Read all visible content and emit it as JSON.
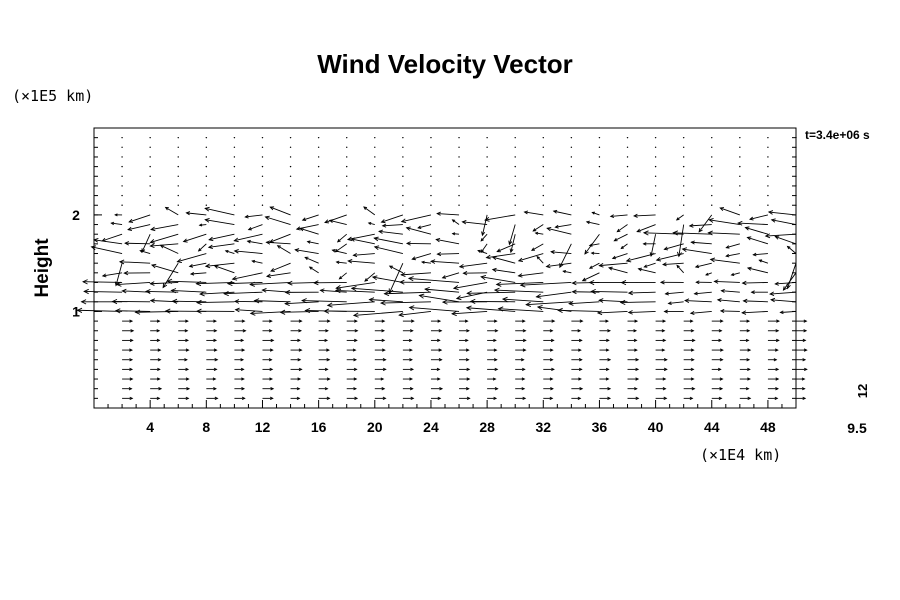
{
  "chart_data": {
    "type": "vector",
    "title": "Wind Velocity Vector",
    "ylabel": "Height",
    "yunit": "(×1E5 km)",
    "xunit": "(×1E4 km)",
    "time_label": "t=3.4e+06 s",
    "reference_vector_label": "12",
    "reference_vector_value_label": "9.5",
    "xlim": [
      0,
      50
    ],
    "ylim": [
      0,
      2.9
    ],
    "x_ticks": [
      4,
      8,
      12,
      16,
      20,
      24,
      28,
      32,
      36,
      40,
      44,
      48
    ],
    "y_ticks": [
      1,
      2
    ],
    "grid": false,
    "field_grid": {
      "x_start": 2,
      "x_step": 2,
      "x_count": 25,
      "y_start": 0.1,
      "y_step": 0.1,
      "y_count": 28
    },
    "field_description": "Near-surface (0.1–0.9) small eastward arrows; strong westward band near heights 1.0–1.3; mixed/turbulent westward arrows 1.4–2.0; negligible above 2.1"
  }
}
